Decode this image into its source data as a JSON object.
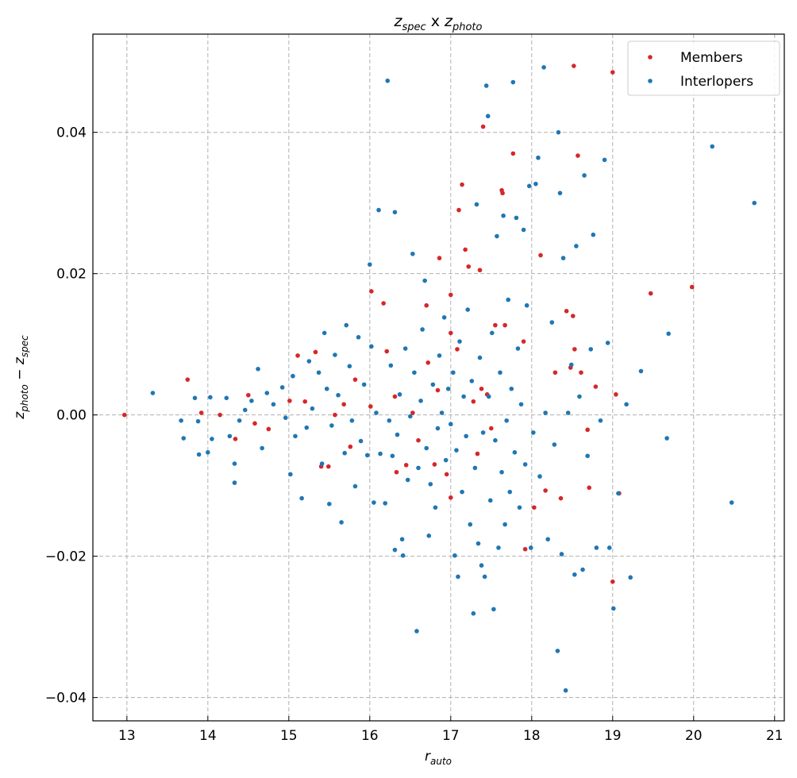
{
  "chart_data": {
    "type": "scatter",
    "title": {
      "a": "z",
      "a_sub": "spec",
      "mid": " x ",
      "b": "z",
      "b_sub": "photo"
    },
    "xlabel": {
      "main": "r",
      "sub": "auto"
    },
    "ylabel": {
      "a": "z",
      "a_sub": "photo",
      "mid": " − ",
      "b": "z",
      "b_sub": "spec"
    },
    "xlim": [
      12.58,
      21.12
    ],
    "ylim": [
      -0.0433,
      0.0539
    ],
    "xticks": [
      13,
      14,
      15,
      16,
      17,
      18,
      19,
      20,
      21
    ],
    "xtick_labels": [
      "13",
      "14",
      "15",
      "16",
      "17",
      "18",
      "19",
      "20",
      "21"
    ],
    "yticks": [
      -0.04,
      -0.02,
      0.0,
      0.02,
      0.04
    ],
    "ytick_labels": [
      "−0.04",
      "−0.02",
      "0.00",
      "0.02",
      "0.04"
    ],
    "grid": true,
    "legend_position": "top-right",
    "colors": {
      "members": "#d62728",
      "interlopers": "#1f77b4"
    },
    "series": [
      {
        "name": "Members",
        "color": "#d62728",
        "points": [
          [
            12.97,
            0.0
          ],
          [
            13.75,
            0.005
          ],
          [
            13.92,
            0.0003
          ],
          [
            14.15,
            0.0
          ],
          [
            14.34,
            -0.0034
          ],
          [
            14.5,
            0.0028
          ],
          [
            14.58,
            -0.0012
          ],
          [
            14.75,
            -0.002
          ],
          [
            15.01,
            0.002
          ],
          [
            15.11,
            0.0084
          ],
          [
            15.2,
            0.0019
          ],
          [
            15.33,
            0.0089
          ],
          [
            15.4,
            -0.0073
          ],
          [
            15.49,
            -0.0073
          ],
          [
            15.57,
            0.0
          ],
          [
            15.68,
            0.0015
          ],
          [
            15.76,
            -0.0045
          ],
          [
            15.82,
            0.005
          ],
          [
            16.02,
            0.0175
          ],
          [
            16.01,
            0.0012
          ],
          [
            16.17,
            0.0158
          ],
          [
            16.21,
            0.009
          ],
          [
            16.31,
            0.0026
          ],
          [
            16.33,
            -0.0081
          ],
          [
            16.45,
            -0.0071
          ],
          [
            16.53,
            0.0003
          ],
          [
            16.6,
            -0.0036
          ],
          [
            16.7,
            0.0155
          ],
          [
            16.72,
            0.0074
          ],
          [
            16.8,
            -0.007
          ],
          [
            16.84,
            0.0035
          ],
          [
            16.86,
            0.0222
          ],
          [
            16.95,
            -0.0084
          ],
          [
            17.0,
            0.0116
          ],
          [
            17.0,
            0.017
          ],
          [
            17.08,
            0.0093
          ],
          [
            17.1,
            0.029
          ],
          [
            17.14,
            0.0326
          ],
          [
            17.18,
            0.0234
          ],
          [
            17.22,
            0.021
          ],
          [
            17.28,
            0.0019
          ],
          [
            17.33,
            -0.0055
          ],
          [
            17.36,
            0.0205
          ],
          [
            17.4,
            0.0408
          ],
          [
            17.45,
            0.0029
          ],
          [
            17.5,
            -0.0019
          ],
          [
            17.55,
            0.0127
          ],
          [
            17.63,
            0.0318
          ],
          [
            17.64,
            0.0314
          ],
          [
            17.67,
            0.0127
          ],
          [
            17.77,
            0.037
          ],
          [
            17.9,
            0.0104
          ],
          [
            17.92,
            -0.019
          ],
          [
            18.03,
            -0.0131
          ],
          [
            18.11,
            0.0226
          ],
          [
            18.17,
            -0.0107
          ],
          [
            18.29,
            0.006
          ],
          [
            18.36,
            -0.0118
          ],
          [
            18.43,
            0.0147
          ],
          [
            18.48,
            0.0067
          ],
          [
            18.52,
            0.0494
          ],
          [
            18.53,
            0.0093
          ],
          [
            18.57,
            0.0367
          ],
          [
            18.61,
            0.006
          ],
          [
            18.69,
            -0.0021
          ],
          [
            18.71,
            -0.0103
          ],
          [
            18.79,
            0.004
          ],
          [
            19.0,
            0.0485
          ],
          [
            19.0,
            -0.0236
          ],
          [
            19.04,
            0.0029
          ],
          [
            19.08,
            -0.0111
          ],
          [
            19.47,
            0.0172
          ],
          [
            19.98,
            0.0181
          ],
          [
            18.51,
            0.014
          ],
          [
            17.0,
            -0.0117
          ],
          [
            17.38,
            0.0037
          ]
        ]
      },
      {
        "name": "Interlopers",
        "color": "#1f77b4",
        "points": [
          [
            13.32,
            0.0031
          ],
          [
            13.67,
            -0.0008
          ],
          [
            13.7,
            -0.0033
          ],
          [
            13.84,
            0.0024
          ],
          [
            13.88,
            -0.0009
          ],
          [
            13.89,
            -0.0056
          ],
          [
            14.0,
            -0.0053
          ],
          [
            14.03,
            0.0025
          ],
          [
            14.05,
            -0.0034
          ],
          [
            14.23,
            0.0024
          ],
          [
            14.27,
            -0.003
          ],
          [
            14.33,
            -0.0069
          ],
          [
            14.33,
            -0.0096
          ],
          [
            14.39,
            -0.0008
          ],
          [
            14.46,
            0.0007
          ],
          [
            14.54,
            0.002
          ],
          [
            14.62,
            0.0065
          ],
          [
            14.67,
            -0.0047
          ],
          [
            14.73,
            0.0031
          ],
          [
            14.81,
            0.0015
          ],
          [
            14.92,
            0.0039
          ],
          [
            14.96,
            -0.0004
          ],
          [
            15.02,
            -0.0084
          ],
          [
            15.05,
            0.0055
          ],
          [
            15.08,
            -0.003
          ],
          [
            15.16,
            -0.0118
          ],
          [
            15.22,
            -0.0018
          ],
          [
            15.25,
            0.0076
          ],
          [
            15.29,
            0.0009
          ],
          [
            15.37,
            0.006
          ],
          [
            15.41,
            -0.0069
          ],
          [
            15.44,
            0.0116
          ],
          [
            15.47,
            0.0037
          ],
          [
            15.5,
            -0.0126
          ],
          [
            15.53,
            -0.0015
          ],
          [
            15.57,
            0.0085
          ],
          [
            15.61,
            0.0028
          ],
          [
            15.65,
            -0.0152
          ],
          [
            15.69,
            -0.0054
          ],
          [
            15.71,
            0.0127
          ],
          [
            15.75,
            0.0069
          ],
          [
            15.78,
            -0.0008
          ],
          [
            15.82,
            -0.0101
          ],
          [
            15.86,
            0.011
          ],
          [
            15.89,
            -0.0037
          ],
          [
            15.93,
            0.0043
          ],
          [
            15.97,
            -0.0057
          ],
          [
            16.0,
            0.0213
          ],
          [
            16.02,
            0.0097
          ],
          [
            16.05,
            -0.0124
          ],
          [
            16.08,
            0.0003
          ],
          [
            16.11,
            0.029
          ],
          [
            16.13,
            -0.0055
          ],
          [
            16.19,
            -0.0125
          ],
          [
            16.22,
            0.0473
          ],
          [
            16.24,
            -0.0008
          ],
          [
            16.26,
            0.007
          ],
          [
            16.28,
            -0.0058
          ],
          [
            16.31,
            0.0287
          ],
          [
            16.31,
            -0.0191
          ],
          [
            16.34,
            -0.0028
          ],
          [
            16.37,
            0.0029
          ],
          [
            16.4,
            -0.0176
          ],
          [
            16.41,
            -0.0199
          ],
          [
            16.44,
            0.0094
          ],
          [
            16.47,
            -0.0092
          ],
          [
            16.5,
            -0.0002
          ],
          [
            16.53,
            0.0228
          ],
          [
            16.55,
            0.006
          ],
          [
            16.58,
            -0.0306
          ],
          [
            16.6,
            -0.0075
          ],
          [
            16.63,
            0.002
          ],
          [
            16.65,
            0.0121
          ],
          [
            16.68,
            0.019
          ],
          [
            16.7,
            -0.0047
          ],
          [
            16.73,
            -0.0171
          ],
          [
            16.75,
            -0.0098
          ],
          [
            16.78,
            0.0043
          ],
          [
            16.81,
            -0.0131
          ],
          [
            16.84,
            -0.0019
          ],
          [
            16.86,
            0.0084
          ],
          [
            16.89,
            0.0003
          ],
          [
            16.92,
            0.0138
          ],
          [
            16.94,
            -0.0064
          ],
          [
            16.97,
            0.0037
          ],
          [
            17.0,
            -0.0013
          ],
          [
            17.03,
            0.006
          ],
          [
            17.05,
            -0.0199
          ],
          [
            17.07,
            -0.005
          ],
          [
            17.09,
            -0.0229
          ],
          [
            17.11,
            0.0104
          ],
          [
            17.14,
            -0.0109
          ],
          [
            17.16,
            0.0026
          ],
          [
            17.19,
            -0.003
          ],
          [
            17.21,
            0.0149
          ],
          [
            17.24,
            -0.0155
          ],
          [
            17.26,
            0.0048
          ],
          [
            17.28,
            -0.0281
          ],
          [
            17.3,
            -0.0075
          ],
          [
            17.32,
            0.0298
          ],
          [
            17.34,
            -0.0182
          ],
          [
            17.36,
            0.0081
          ],
          [
            17.38,
            -0.0213
          ],
          [
            17.4,
            -0.0025
          ],
          [
            17.42,
            -0.0229
          ],
          [
            17.44,
            0.0466
          ],
          [
            17.46,
            0.0423
          ],
          [
            17.47,
            0.0026
          ],
          [
            17.49,
            -0.0121
          ],
          [
            17.51,
            0.0116
          ],
          [
            17.53,
            -0.0275
          ],
          [
            17.55,
            -0.0036
          ],
          [
            17.57,
            0.0253
          ],
          [
            17.59,
            -0.0188
          ],
          [
            17.61,
            0.006
          ],
          [
            17.63,
            -0.0081
          ],
          [
            17.65,
            0.0282
          ],
          [
            17.67,
            -0.0155
          ],
          [
            17.69,
            -0.0008
          ],
          [
            17.71,
            0.0163
          ],
          [
            17.73,
            -0.0109
          ],
          [
            17.75,
            0.0037
          ],
          [
            17.77,
            0.0471
          ],
          [
            17.79,
            -0.0053
          ],
          [
            17.81,
            0.0279
          ],
          [
            17.83,
            0.0094
          ],
          [
            17.85,
            -0.0131
          ],
          [
            17.87,
            0.0015
          ],
          [
            17.9,
            0.0262
          ],
          [
            17.92,
            -0.007
          ],
          [
            17.94,
            0.0155
          ],
          [
            17.97,
            0.0324
          ],
          [
            17.99,
            -0.0188
          ],
          [
            18.02,
            -0.0025
          ],
          [
            18.05,
            0.0327
          ],
          [
            18.08,
            0.0364
          ],
          [
            18.1,
            -0.0087
          ],
          [
            18.15,
            0.0492
          ],
          [
            18.17,
            0.0003
          ],
          [
            18.2,
            -0.0176
          ],
          [
            18.25,
            0.0131
          ],
          [
            18.28,
            -0.0042
          ],
          [
            18.32,
            -0.0334
          ],
          [
            18.33,
            0.04
          ],
          [
            18.35,
            0.0314
          ],
          [
            18.37,
            -0.0197
          ],
          [
            18.39,
            0.0222
          ],
          [
            18.42,
            -0.039
          ],
          [
            18.45,
            0.0003
          ],
          [
            18.49,
            0.0071
          ],
          [
            18.53,
            -0.0226
          ],
          [
            18.55,
            0.0239
          ],
          [
            18.59,
            0.0026
          ],
          [
            18.63,
            -0.0219
          ],
          [
            18.65,
            0.0339
          ],
          [
            18.69,
            -0.0058
          ],
          [
            18.73,
            0.0093
          ],
          [
            18.76,
            0.0255
          ],
          [
            18.8,
            -0.0188
          ],
          [
            18.85,
            -0.0008
          ],
          [
            18.9,
            0.0361
          ],
          [
            18.94,
            0.0102
          ],
          [
            18.96,
            -0.0188
          ],
          [
            19.01,
            -0.0274
          ],
          [
            19.07,
            -0.0111
          ],
          [
            19.17,
            0.0015
          ],
          [
            19.22,
            -0.023
          ],
          [
            19.35,
            0.0062
          ],
          [
            19.67,
            -0.0033
          ],
          [
            19.69,
            0.0115
          ],
          [
            20.23,
            0.038
          ],
          [
            20.47,
            -0.0124
          ],
          [
            20.75,
            0.03
          ]
        ]
      }
    ]
  }
}
